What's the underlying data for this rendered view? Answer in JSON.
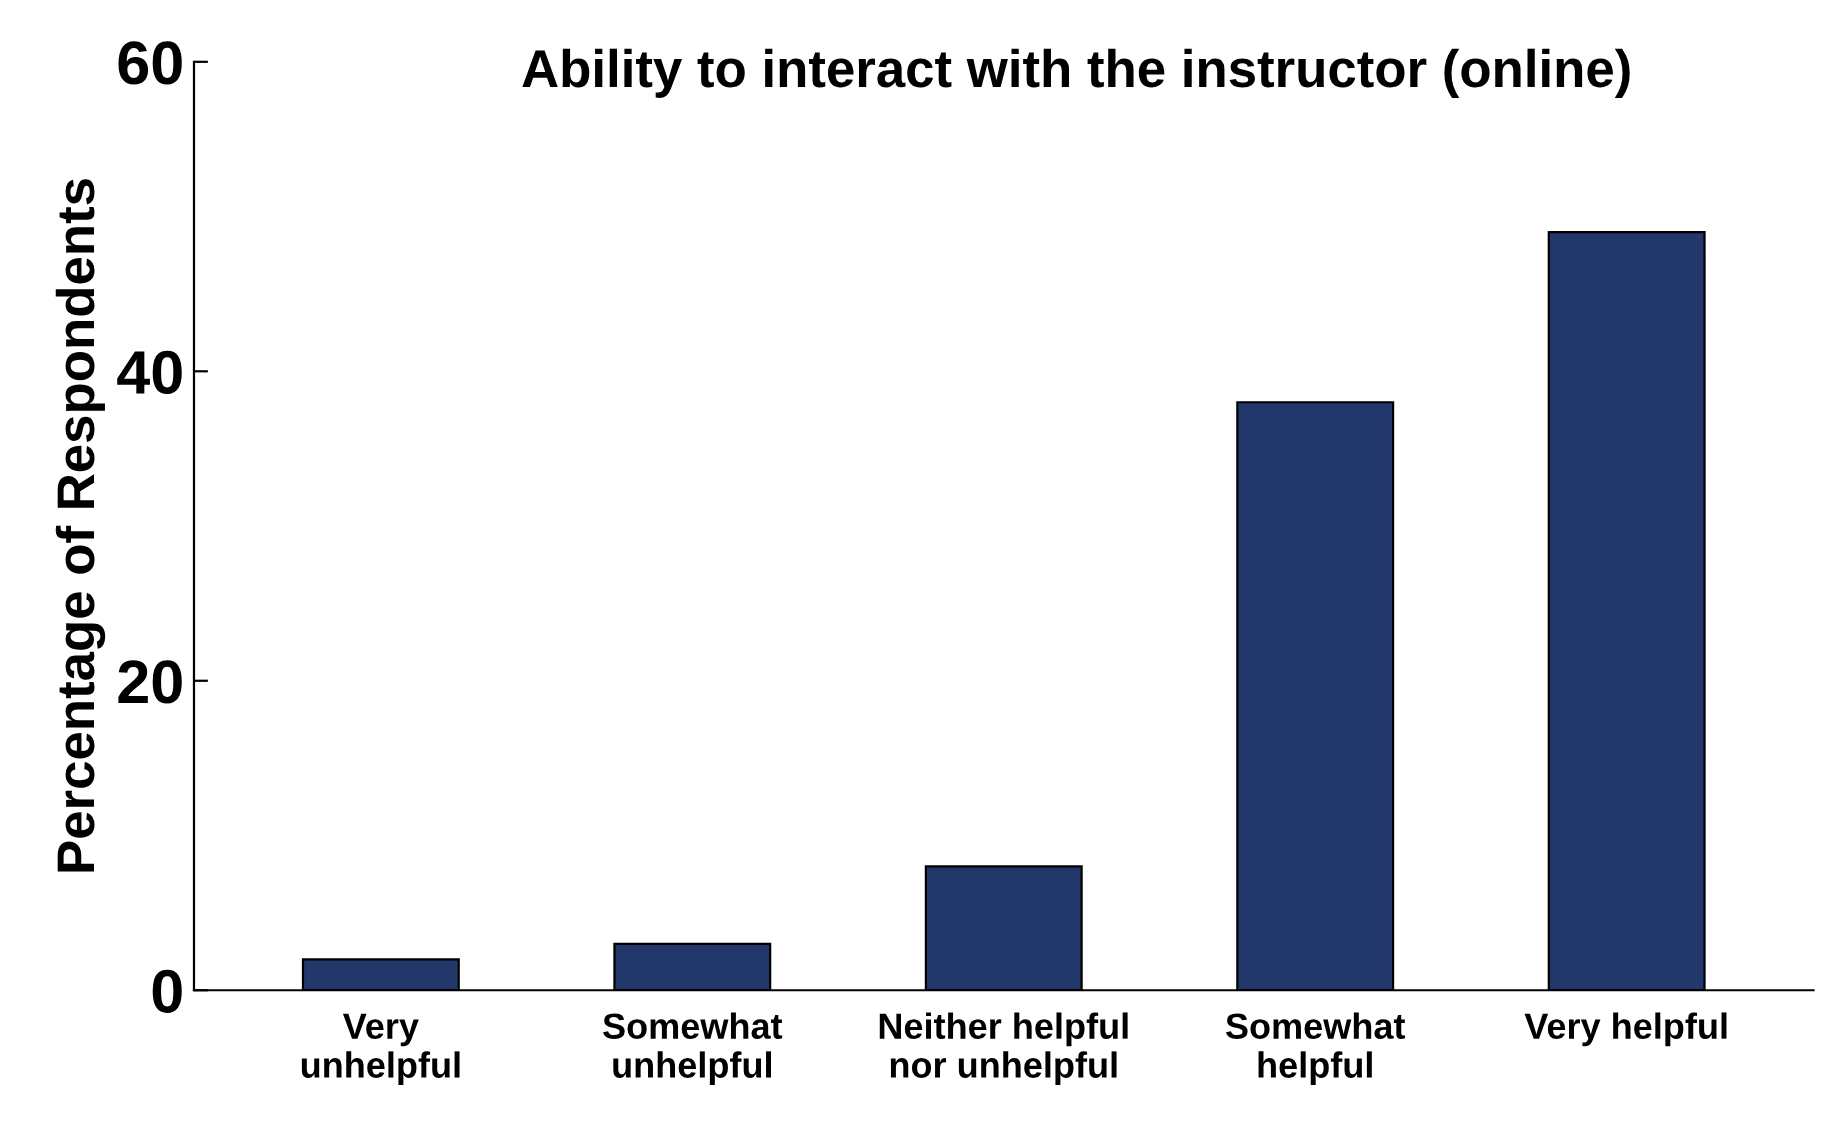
{
  "chart_data": {
    "type": "bar",
    "title": "Ability to interact with the instructor (online)",
    "ylabel": "Percentage of Respondents",
    "categories": [
      "Very\nunhelpful",
      "Somewhat\nunhelpful",
      "Neither helpful\nnor unhelpful",
      "Somewhat\nhelpful",
      "Very helpful"
    ],
    "values": [
      2,
      3,
      8,
      38,
      49
    ],
    "color": "#22376a",
    "ylim": [
      0,
      60
    ],
    "yticks": [
      0,
      20,
      40,
      60
    ],
    "grid": false,
    "legend": false
  }
}
